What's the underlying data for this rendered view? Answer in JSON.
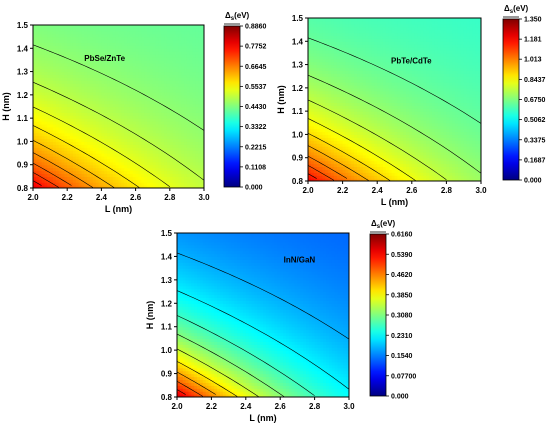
{
  "chart_data": [
    {
      "type": "heatmap",
      "plot_type": "filled contour",
      "label": "PbSe/ZnTe",
      "xlabel": "L (nm)",
      "ylabel": "H (nm)",
      "xlim": [
        2.0,
        3.0
      ],
      "ylim": [
        0.8,
        1.5
      ],
      "xticks": [
        "2.0",
        "2.2",
        "2.4",
        "2.6",
        "2.8",
        "3.0"
      ],
      "yticks": [
        "0.8",
        "0.9",
        "1.0",
        "1.1",
        "1.2",
        "1.3",
        "1.4",
        "1.5"
      ],
      "colorbar": {
        "title": "Δs(eV)",
        "min": 0.0,
        "max": 0.886,
        "ticks": [
          "0.8860",
          "0.7752",
          "0.6645",
          "0.5537",
          "0.4430",
          "0.3322",
          "0.2215",
          "0.1108",
          "0.000"
        ]
      },
      "value_range": [
        0.42,
        0.8
      ],
      "contour_lines": true,
      "colormap": "jet"
    },
    {
      "type": "heatmap",
      "plot_type": "filled contour",
      "label": "PbTe/CdTe",
      "xlabel": "L (nm)",
      "ylabel": "H (nm)",
      "xlim": [
        2.0,
        3.0
      ],
      "ylim": [
        0.8,
        1.5
      ],
      "xticks": [
        "2.0",
        "2.2",
        "2.4",
        "2.6",
        "2.8",
        "3.0"
      ],
      "yticks": [
        "0.8",
        "0.9",
        "1.0",
        "1.1",
        "1.2",
        "1.3",
        "1.4",
        "1.5"
      ],
      "colorbar": {
        "title": "Δs(eV)",
        "min": 0.0,
        "max": 1.35,
        "ticks": [
          "1.350",
          "1.181",
          "1.013",
          "0.8437",
          "0.6750",
          "0.5062",
          "0.3375",
          "0.1687",
          "0.000"
        ]
      },
      "value_range": [
        0.58,
        1.2
      ],
      "contour_lines": true,
      "colormap": "jet"
    },
    {
      "type": "heatmap",
      "plot_type": "filled contour",
      "label": "InN/GaN",
      "xlabel": "L (nm)",
      "ylabel": "H (nm)",
      "xlim": [
        2.0,
        3.0
      ],
      "ylim": [
        0.8,
        1.5
      ],
      "xticks": [
        "2.0",
        "2.2",
        "2.4",
        "2.6",
        "2.8",
        "3.0"
      ],
      "yticks": [
        "0.8",
        "0.9",
        "1.0",
        "1.1",
        "1.2",
        "1.3",
        "1.4",
        "1.5"
      ],
      "colorbar": {
        "title": "Δs(eV)",
        "min": 0.0,
        "max": 0.616,
        "ticks": [
          "0.6160",
          "0.5390",
          "0.4620",
          "0.3850",
          "0.3080",
          "0.2310",
          "0.1540",
          "0.07700",
          "0.000"
        ]
      },
      "value_range": [
        0.14,
        0.57
      ],
      "contour_lines": true,
      "colormap": "jet"
    }
  ]
}
